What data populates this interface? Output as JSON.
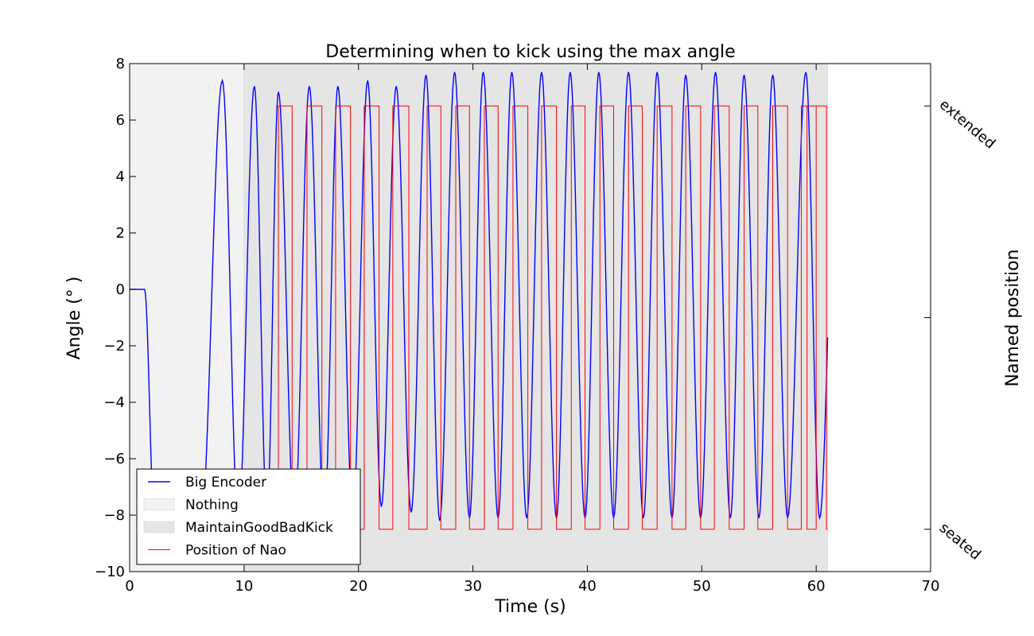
{
  "chart_data": {
    "type": "line",
    "title": "Determining when to kick using the max angle",
    "xlabel": "Time (s)",
    "ylabel": "Angle (° )",
    "y2label": "Named position",
    "xlim": [
      0,
      70
    ],
    "ylim": [
      -10,
      8
    ],
    "x_ticks": [
      "0",
      "10",
      "20",
      "30",
      "40",
      "50",
      "60",
      "70"
    ],
    "y_ticks": [
      "−10",
      "−8",
      "−6",
      "−4",
      "−2",
      "0",
      "2",
      "4",
      "6",
      "8"
    ],
    "y2_ticks": [
      "seated",
      "extended"
    ],
    "grid": false,
    "legend_position": "lower-left",
    "shaded_regions": [
      {
        "name": "Nothing",
        "x_start": 0,
        "x_end": 10,
        "color": "#f2f2f2"
      },
      {
        "name": "MaintainGoodBadKick",
        "x_start": 10,
        "x_end": 61,
        "color": "#e5e5e5"
      }
    ],
    "series": [
      {
        "name": "Big Encoder",
        "color": "#0000ff",
        "signal": {
          "flat_until": 1.3,
          "flat_value": 0,
          "drop_end": 2.2,
          "drop_value": -8.5,
          "peaks": [
            [
              8.1,
              7.4
            ],
            [
              10.9,
              7.2
            ],
            [
              13.0,
              7.0
            ],
            [
              15.7,
              7.2
            ],
            [
              18.2,
              7.2
            ],
            [
              20.8,
              7.4
            ],
            [
              23.3,
              7.2
            ],
            [
              25.9,
              7.6
            ],
            [
              28.4,
              7.7
            ],
            [
              30.9,
              7.7
            ],
            [
              33.4,
              7.7
            ],
            [
              36.0,
              7.7
            ],
            [
              38.5,
              7.7
            ],
            [
              41.0,
              7.7
            ],
            [
              43.6,
              7.7
            ],
            [
              46.1,
              7.7
            ],
            [
              48.6,
              7.6
            ],
            [
              51.2,
              7.7
            ],
            [
              53.7,
              7.6
            ],
            [
              56.2,
              7.6
            ],
            [
              59.1,
              7.7
            ]
          ],
          "troughs": [
            [
              9.5,
              -8.3
            ],
            [
              12.0,
              -8.0
            ],
            [
              14.4,
              -8.2
            ],
            [
              17.0,
              -8.2
            ],
            [
              19.5,
              -8.0
            ],
            [
              22.0,
              -7.7
            ],
            [
              24.6,
              -7.9
            ],
            [
              27.1,
              -8.2
            ],
            [
              29.7,
              -8.1
            ],
            [
              32.2,
              -8.1
            ],
            [
              34.7,
              -8.1
            ],
            [
              37.3,
              -8.1
            ],
            [
              39.8,
              -8.1
            ],
            [
              42.3,
              -8.1
            ],
            [
              44.9,
              -8.1
            ],
            [
              47.4,
              -8.1
            ],
            [
              49.9,
              -8.1
            ],
            [
              52.5,
              -8.1
            ],
            [
              55.0,
              -8.1
            ],
            [
              57.5,
              -8.1
            ],
            [
              60.3,
              -8.1
            ]
          ],
          "end": [
            61.0,
            -1.7
          ]
        }
      },
      {
        "name": "Position of Nao",
        "color": "#ff0000",
        "extended_value": 6.5,
        "seated_value": -8.5,
        "start": 13.0,
        "end": 61.0,
        "extended_intervals": [
          [
            13.0,
            14.2
          ],
          [
            15.5,
            16.8
          ],
          [
            18.0,
            19.3
          ],
          [
            20.5,
            21.8
          ],
          [
            23.0,
            24.4
          ],
          [
            26.0,
            27.2
          ],
          [
            28.5,
            29.7
          ],
          [
            31.0,
            32.2
          ],
          [
            33.5,
            34.8
          ],
          [
            36.0,
            37.3
          ],
          [
            38.6,
            39.8
          ],
          [
            41.1,
            42.3
          ],
          [
            43.6,
            44.8
          ],
          [
            46.1,
            47.4
          ],
          [
            48.6,
            49.9
          ],
          [
            51.1,
            52.4
          ],
          [
            53.7,
            54.9
          ],
          [
            56.2,
            57.5
          ],
          [
            58.7,
            60.0
          ],
          [
            59.2,
            60.9
          ]
        ]
      }
    ],
    "legend": [
      "Big Encoder",
      "Nothing",
      "MaintainGoodBadKick",
      "Position of Nao"
    ]
  }
}
